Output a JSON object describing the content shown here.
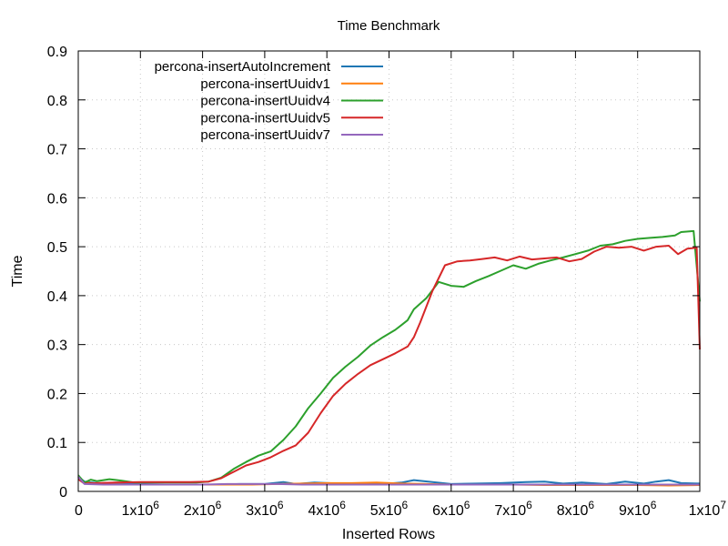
{
  "chart_data": {
    "type": "line",
    "title": "Time Benchmark",
    "xlabel": "Inserted Rows",
    "ylabel": "Time",
    "xlim": [
      0,
      10000000
    ],
    "ylim": [
      0,
      0.9
    ],
    "grid": true,
    "legend_position": "top-left",
    "x_ticks": [
      {
        "value": 0,
        "base": "0",
        "exp": ""
      },
      {
        "value": 1000000,
        "base": "1x10",
        "exp": "6"
      },
      {
        "value": 2000000,
        "base": "2x10",
        "exp": "6"
      },
      {
        "value": 3000000,
        "base": "3x10",
        "exp": "6"
      },
      {
        "value": 4000000,
        "base": "4x10",
        "exp": "6"
      },
      {
        "value": 5000000,
        "base": "5x10",
        "exp": "6"
      },
      {
        "value": 6000000,
        "base": "6x10",
        "exp": "6"
      },
      {
        "value": 7000000,
        "base": "7x10",
        "exp": "6"
      },
      {
        "value": 8000000,
        "base": "8x10",
        "exp": "6"
      },
      {
        "value": 9000000,
        "base": "9x10",
        "exp": "6"
      },
      {
        "value": 10000000,
        "base": "1x10",
        "exp": "7"
      }
    ],
    "y_ticks": [
      {
        "value": 0,
        "label": "0"
      },
      {
        "value": 0.1,
        "label": "0.1"
      },
      {
        "value": 0.2,
        "label": "0.2"
      },
      {
        "value": 0.3,
        "label": "0.3"
      },
      {
        "value": 0.4,
        "label": "0.4"
      },
      {
        "value": 0.5,
        "label": "0.5"
      },
      {
        "value": 0.6,
        "label": "0.6"
      },
      {
        "value": 0.7,
        "label": "0.7"
      },
      {
        "value": 0.8,
        "label": "0.8"
      },
      {
        "value": 0.9,
        "label": "0.9"
      }
    ],
    "series": [
      {
        "name": "percona-insertAutoIncrement",
        "color": "#1f77b4",
        "points": [
          [
            0,
            0.03
          ],
          [
            100000,
            0.02
          ],
          [
            300000,
            0.017
          ],
          [
            600000,
            0.016
          ],
          [
            1000000,
            0.015
          ],
          [
            1400000,
            0.014
          ],
          [
            1800000,
            0.014
          ],
          [
            2200000,
            0.014
          ],
          [
            2600000,
            0.015
          ],
          [
            3000000,
            0.015
          ],
          [
            3300000,
            0.019
          ],
          [
            3500000,
            0.015
          ],
          [
            3800000,
            0.018
          ],
          [
            4200000,
            0.016
          ],
          [
            4600000,
            0.015
          ],
          [
            5000000,
            0.016
          ],
          [
            5200000,
            0.018
          ],
          [
            5400000,
            0.023
          ],
          [
            5700000,
            0.019
          ],
          [
            6000000,
            0.015
          ],
          [
            6400000,
            0.016
          ],
          [
            6800000,
            0.017
          ],
          [
            7200000,
            0.019
          ],
          [
            7500000,
            0.02
          ],
          [
            7800000,
            0.016
          ],
          [
            8100000,
            0.018
          ],
          [
            8500000,
            0.015
          ],
          [
            8800000,
            0.02
          ],
          [
            9100000,
            0.016
          ],
          [
            9300000,
            0.02
          ],
          [
            9500000,
            0.023
          ],
          [
            9700000,
            0.017
          ],
          [
            10000000,
            0.016
          ]
        ]
      },
      {
        "name": "percona-insertUuidv1",
        "color": "#ff7f0e",
        "points": [
          [
            0,
            0.03
          ],
          [
            100000,
            0.018
          ],
          [
            400000,
            0.015
          ],
          [
            800000,
            0.014
          ],
          [
            1200000,
            0.014
          ],
          [
            1600000,
            0.014
          ],
          [
            2000000,
            0.014
          ],
          [
            2400000,
            0.014
          ],
          [
            2800000,
            0.014
          ],
          [
            3200000,
            0.015
          ],
          [
            3600000,
            0.016
          ],
          [
            4000000,
            0.017
          ],
          [
            4400000,
            0.017
          ],
          [
            4800000,
            0.018
          ],
          [
            5200000,
            0.016
          ],
          [
            5600000,
            0.015
          ],
          [
            6000000,
            0.014
          ],
          [
            6500000,
            0.014
          ],
          [
            7000000,
            0.014
          ],
          [
            7500000,
            0.013
          ],
          [
            8000000,
            0.013
          ],
          [
            8500000,
            0.013
          ],
          [
            9000000,
            0.013
          ],
          [
            9500000,
            0.012
          ],
          [
            10000000,
            0.013
          ]
        ]
      },
      {
        "name": "percona-insertUuidv4",
        "color": "#2ca02c",
        "points": [
          [
            0,
            0.033
          ],
          [
            100000,
            0.018
          ],
          [
            200000,
            0.024
          ],
          [
            300000,
            0.021
          ],
          [
            500000,
            0.025
          ],
          [
            700000,
            0.022
          ],
          [
            900000,
            0.018
          ],
          [
            1100000,
            0.018
          ],
          [
            1300000,
            0.018
          ],
          [
            1500000,
            0.018
          ],
          [
            1700000,
            0.018
          ],
          [
            1900000,
            0.018
          ],
          [
            2100000,
            0.02
          ],
          [
            2300000,
            0.028
          ],
          [
            2500000,
            0.046
          ],
          [
            2700000,
            0.06
          ],
          [
            2900000,
            0.073
          ],
          [
            3100000,
            0.082
          ],
          [
            3300000,
            0.105
          ],
          [
            3500000,
            0.133
          ],
          [
            3700000,
            0.17
          ],
          [
            3900000,
            0.2
          ],
          [
            4100000,
            0.232
          ],
          [
            4300000,
            0.255
          ],
          [
            4500000,
            0.275
          ],
          [
            4700000,
            0.298
          ],
          [
            4900000,
            0.315
          ],
          [
            5100000,
            0.33
          ],
          [
            5200000,
            0.34
          ],
          [
            5300000,
            0.35
          ],
          [
            5400000,
            0.372
          ],
          [
            5600000,
            0.395
          ],
          [
            5800000,
            0.428
          ],
          [
            6000000,
            0.42
          ],
          [
            6200000,
            0.418
          ],
          [
            6400000,
            0.43
          ],
          [
            6600000,
            0.44
          ],
          [
            6800000,
            0.451
          ],
          [
            7000000,
            0.462
          ],
          [
            7200000,
            0.455
          ],
          [
            7400000,
            0.465
          ],
          [
            7600000,
            0.472
          ],
          [
            7800000,
            0.478
          ],
          [
            8000000,
            0.485
          ],
          [
            8200000,
            0.492
          ],
          [
            8400000,
            0.502
          ],
          [
            8600000,
            0.505
          ],
          [
            8800000,
            0.512
          ],
          [
            9000000,
            0.516
          ],
          [
            9200000,
            0.518
          ],
          [
            9400000,
            0.52
          ],
          [
            9600000,
            0.523
          ],
          [
            9700000,
            0.53
          ],
          [
            9900000,
            0.532
          ],
          [
            10000000,
            0.388
          ]
        ]
      },
      {
        "name": "percona-insertUuidv5",
        "color": "#d62728",
        "points": [
          [
            0,
            0.025
          ],
          [
            100000,
            0.016
          ],
          [
            300000,
            0.017
          ],
          [
            600000,
            0.018
          ],
          [
            1000000,
            0.019
          ],
          [
            1400000,
            0.019
          ],
          [
            1800000,
            0.019
          ],
          [
            2100000,
            0.02
          ],
          [
            2300000,
            0.027
          ],
          [
            2500000,
            0.04
          ],
          [
            2700000,
            0.053
          ],
          [
            2900000,
            0.06
          ],
          [
            3100000,
            0.07
          ],
          [
            3300000,
            0.083
          ],
          [
            3500000,
            0.094
          ],
          [
            3700000,
            0.12
          ],
          [
            3900000,
            0.16
          ],
          [
            4100000,
            0.195
          ],
          [
            4300000,
            0.22
          ],
          [
            4500000,
            0.24
          ],
          [
            4700000,
            0.258
          ],
          [
            4900000,
            0.27
          ],
          [
            5100000,
            0.282
          ],
          [
            5300000,
            0.296
          ],
          [
            5400000,
            0.315
          ],
          [
            5500000,
            0.345
          ],
          [
            5700000,
            0.41
          ],
          [
            5900000,
            0.462
          ],
          [
            6100000,
            0.47
          ],
          [
            6300000,
            0.472
          ],
          [
            6500000,
            0.475
          ],
          [
            6700000,
            0.478
          ],
          [
            6900000,
            0.472
          ],
          [
            7100000,
            0.48
          ],
          [
            7300000,
            0.474
          ],
          [
            7500000,
            0.476
          ],
          [
            7700000,
            0.478
          ],
          [
            7900000,
            0.47
          ],
          [
            8100000,
            0.475
          ],
          [
            8300000,
            0.49
          ],
          [
            8500000,
            0.5
          ],
          [
            8700000,
            0.498
          ],
          [
            8900000,
            0.5
          ],
          [
            9100000,
            0.492
          ],
          [
            9300000,
            0.5
          ],
          [
            9500000,
            0.502
          ],
          [
            9650000,
            0.485
          ],
          [
            9800000,
            0.496
          ],
          [
            9950000,
            0.498
          ],
          [
            10000000,
            0.29
          ]
        ]
      },
      {
        "name": "percona-insertUuidv7",
        "color": "#9467bd",
        "points": [
          [
            0,
            0.03
          ],
          [
            100000,
            0.015
          ],
          [
            400000,
            0.014
          ],
          [
            800000,
            0.014
          ],
          [
            1200000,
            0.014
          ],
          [
            1600000,
            0.014
          ],
          [
            2000000,
            0.014
          ],
          [
            2400000,
            0.015
          ],
          [
            2800000,
            0.015
          ],
          [
            3200000,
            0.015
          ],
          [
            3600000,
            0.014
          ],
          [
            4000000,
            0.014
          ],
          [
            4400000,
            0.014
          ],
          [
            4800000,
            0.014
          ],
          [
            5200000,
            0.014
          ],
          [
            5600000,
            0.014
          ],
          [
            6000000,
            0.014
          ],
          [
            6500000,
            0.014
          ],
          [
            7000000,
            0.014
          ],
          [
            7500000,
            0.014
          ],
          [
            8000000,
            0.014
          ],
          [
            8500000,
            0.014
          ],
          [
            9000000,
            0.014
          ],
          [
            9500000,
            0.014
          ],
          [
            10000000,
            0.014
          ]
        ]
      }
    ]
  }
}
